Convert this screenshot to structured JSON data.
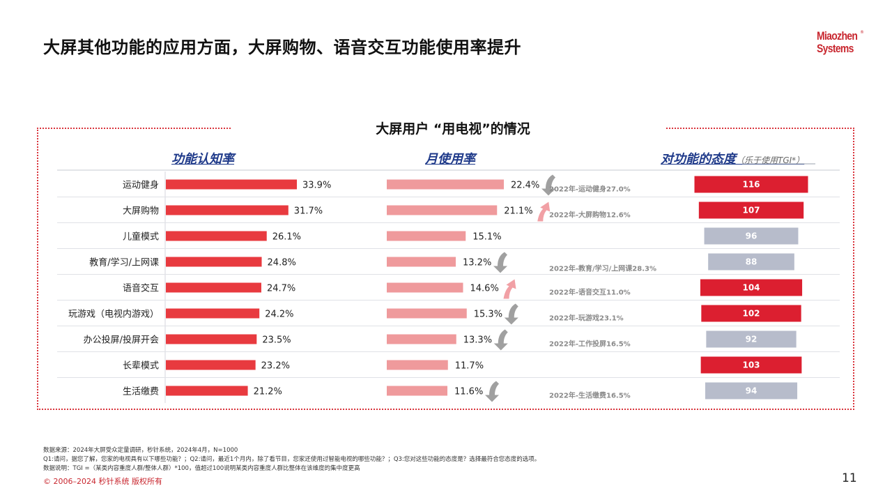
{
  "header": {
    "title": "大屏其他功能的应用方面，大屏购物、语音交互功能使用率提升"
  },
  "logo": {
    "line1": "Miaozhen",
    "line2": "Systems",
    "mark": "®"
  },
  "panel": {
    "title": "大屏用户 “用电视”的情况",
    "col1_title": "功能认知率",
    "col2_title": "月使用率",
    "col3_title": "对功能的态度",
    "col3_sub": "（乐于使用TGI*）"
  },
  "colors": {
    "awareness_bar": "#e83a3f",
    "usage_bar": "#ef9a9c",
    "tgi_high": "#dc1f30",
    "tgi_low": "#b7bccb",
    "arrow_up": "#f1a0a5",
    "arrow_down": "#a0a0a0"
  },
  "chart_data": {
    "type": "bar",
    "categories": [
      "运动健身",
      "大屏购物",
      "儿童模式",
      "教育/学习/上网课",
      "语音交互",
      "玩游戏（电视内游戏）",
      "办公投屏/投屏开会",
      "长辈模式",
      "生活缴费"
    ],
    "series": [
      {
        "name": "功能认知率",
        "values": [
          33.9,
          31.7,
          26.1,
          24.8,
          24.7,
          24.2,
          23.5,
          23.2,
          21.2
        ],
        "labels": [
          "33.9%",
          "31.7%",
          "26.1%",
          "24.8%",
          "24.7%",
          "24.2%",
          "23.5%",
          "23.2%",
          "21.2%"
        ]
      },
      {
        "name": "月使用率",
        "values": [
          22.4,
          21.1,
          15.1,
          13.2,
          14.6,
          15.3,
          13.3,
          11.7,
          11.6
        ],
        "labels": [
          "22.4%",
          "21.1%",
          "15.1%",
          "13.2%",
          "14.6%",
          "15.3%",
          "13.3%",
          "11.7%",
          "11.6%"
        ],
        "trend": [
          "down",
          "up",
          "",
          "down",
          "up",
          "down",
          "down",
          "",
          "down"
        ],
        "notes": [
          "2022年-运动健身27.0%",
          "2022年-大屏购物12.6%",
          "",
          "2022年-教育/学习/上网课28.3%",
          "2022年-语音交互11.0%",
          "2022年-玩游戏23.1%",
          "2022年-工作投屏16.5%",
          "",
          "2022年-生活缴费16.5%"
        ]
      },
      {
        "name": "对功能的态度",
        "values": [
          116,
          107,
          96,
          88,
          104,
          102,
          92,
          103,
          94
        ],
        "labels": [
          "116",
          "107",
          "96",
          "88",
          "104",
          "102",
          "92",
          "103",
          "94"
        ]
      }
    ]
  },
  "footer": {
    "line1": "数据来源：2024年大屏受众定量调研，秒针系统，2024年4月，N=1000",
    "line2": "Q1:请问，据您了解，您家的电视具有以下哪些功能？；Q2:请问，最近1个月内，除了看节目，您家还使用过智能电视的哪些功能？；Q3:您对这些功能的态度是？选择最符合您态度的选项。",
    "line3": "数据说明：TGI =（某类内容重度人群/整体人群）*100，值超过100说明某类内容重度人群比整体在该维度的集中度更高",
    "copyright": "© 2006–2024 秒针系统 版权所有",
    "page": "11"
  }
}
